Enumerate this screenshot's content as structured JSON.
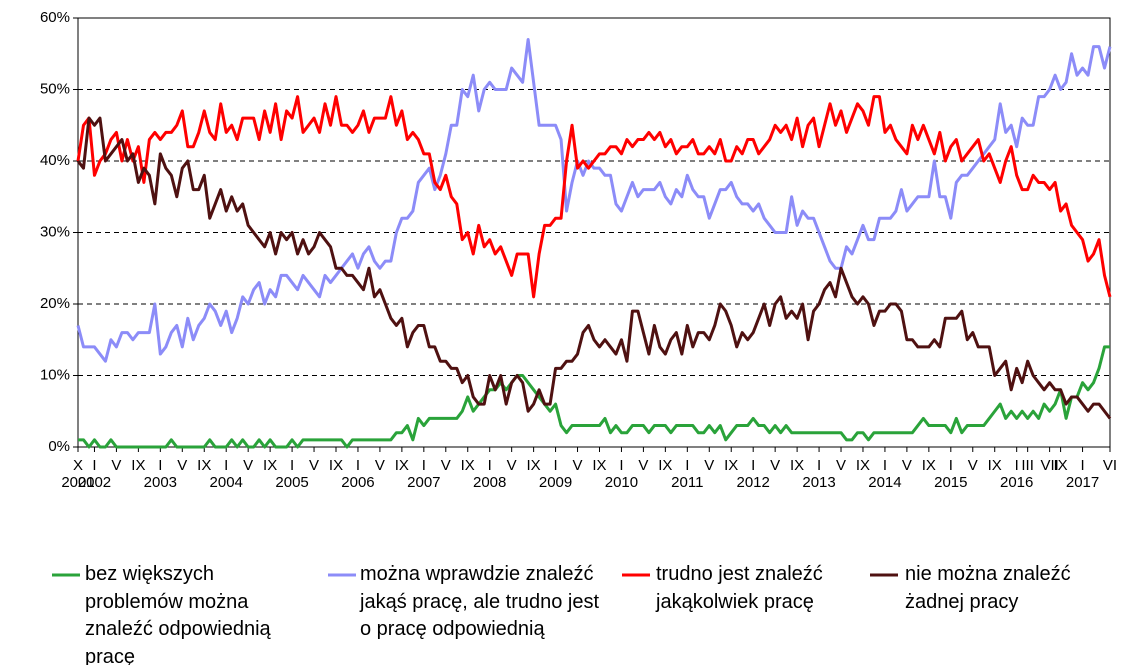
{
  "chart_data": {
    "type": "line",
    "categories": [
      "X",
      null,
      null,
      "I",
      null,
      null,
      null,
      "V",
      null,
      null,
      null,
      "IX",
      null,
      null,
      null,
      "I",
      null,
      null,
      null,
      "V",
      null,
      null,
      null,
      "IX",
      null,
      null,
      null,
      "I",
      null,
      null,
      null,
      "V",
      null,
      null,
      null,
      "IX",
      null,
      null,
      null,
      "I",
      null,
      null,
      null,
      "V",
      null,
      null,
      null,
      "IX",
      null,
      null,
      null,
      "I",
      null,
      null,
      null,
      "V",
      null,
      null,
      null,
      "IX",
      null,
      null,
      null,
      "I",
      null,
      null,
      null,
      "V",
      null,
      null,
      null,
      "IX",
      null,
      null,
      null,
      "I",
      null,
      null,
      null,
      "V",
      null,
      null,
      null,
      "IX",
      null,
      null,
      null,
      "I",
      null,
      null,
      null,
      "V",
      null,
      null,
      null,
      "IX",
      null,
      null,
      null,
      "I",
      null,
      null,
      null,
      "V",
      null,
      null,
      null,
      "IX",
      null,
      null,
      null,
      "I",
      null,
      null,
      null,
      "V",
      null,
      null,
      null,
      "IX",
      null,
      null,
      null,
      "I",
      null,
      null,
      null,
      "V",
      null,
      null,
      null,
      "IX",
      null,
      null,
      null,
      "I",
      null,
      null,
      null,
      "V",
      null,
      null,
      null,
      "IX",
      null,
      null,
      null,
      "I",
      null,
      null,
      null,
      "V",
      null,
      null,
      null,
      "IX",
      null,
      null,
      null,
      "I",
      null,
      null,
      null,
      "V",
      null,
      null,
      null,
      "IX",
      null,
      null,
      null,
      "I",
      null,
      "III",
      null,
      null,
      null,
      "VII",
      null,
      "IX",
      null,
      null,
      null,
      "I",
      null,
      null,
      null,
      null,
      "VI"
    ],
    "years": [
      "2001",
      null,
      null,
      "2002",
      null,
      null,
      null,
      null,
      null,
      null,
      null,
      null,
      null,
      null,
      null,
      "2003",
      null,
      null,
      null,
      null,
      null,
      null,
      null,
      null,
      null,
      null,
      null,
      "2004",
      null,
      null,
      null,
      null,
      null,
      null,
      null,
      null,
      null,
      null,
      null,
      "2005",
      null,
      null,
      null,
      null,
      null,
      null,
      null,
      null,
      null,
      null,
      null,
      "2006",
      null,
      null,
      null,
      null,
      null,
      null,
      null,
      null,
      null,
      null,
      null,
      "2007",
      null,
      null,
      null,
      null,
      null,
      null,
      null,
      null,
      null,
      null,
      null,
      "2008",
      null,
      null,
      null,
      null,
      null,
      null,
      null,
      null,
      null,
      null,
      null,
      "2009",
      null,
      null,
      null,
      null,
      null,
      null,
      null,
      null,
      null,
      null,
      null,
      "2010",
      null,
      null,
      null,
      null,
      null,
      null,
      null,
      null,
      null,
      null,
      null,
      "2011",
      null,
      null,
      null,
      null,
      null,
      null,
      null,
      null,
      null,
      null,
      null,
      "2012",
      null,
      null,
      null,
      null,
      null,
      null,
      null,
      null,
      null,
      null,
      null,
      "2013",
      null,
      null,
      null,
      null,
      null,
      null,
      null,
      null,
      null,
      null,
      null,
      "2014",
      null,
      null,
      null,
      null,
      null,
      null,
      null,
      null,
      null,
      null,
      null,
      "2015",
      null,
      null,
      null,
      null,
      null,
      null,
      null,
      null,
      null,
      null,
      null,
      "2016",
      null,
      null,
      null,
      null,
      null,
      null,
      null,
      null,
      null,
      null,
      null,
      "2017",
      null,
      null,
      null,
      null,
      null
    ],
    "series": [
      {
        "name": "bez większych problemów można znaleźć odpowiednią pracę",
        "color": "#2aa33a",
        "values": [
          1,
          1,
          0,
          1,
          0,
          0,
          1,
          0,
          0,
          0,
          0,
          0,
          0,
          0,
          0,
          0,
          0,
          1,
          0,
          0,
          0,
          0,
          0,
          0,
          1,
          0,
          0,
          0,
          1,
          0,
          1,
          0,
          0,
          1,
          0,
          1,
          0,
          0,
          0,
          1,
          0,
          1,
          1,
          1,
          1,
          1,
          1,
          1,
          1,
          0,
          1,
          1,
          1,
          1,
          1,
          1,
          1,
          1,
          2,
          2,
          3,
          1,
          4,
          3,
          4,
          4,
          4,
          4,
          4,
          4,
          5,
          7,
          5,
          6,
          7,
          8,
          8,
          9,
          8,
          9,
          10,
          10,
          9,
          8,
          7,
          6,
          5,
          6,
          3,
          2,
          3,
          3,
          3,
          3,
          3,
          3,
          4,
          2,
          3,
          2,
          2,
          3,
          3,
          3,
          2,
          3,
          3,
          3,
          2,
          3,
          3,
          3,
          3,
          2,
          2,
          3,
          2,
          3,
          1,
          2,
          3,
          3,
          3,
          4,
          3,
          3,
          2,
          3,
          2,
          3,
          2,
          2,
          2,
          2,
          2,
          2,
          2,
          2,
          2,
          2,
          1,
          1,
          2,
          2,
          1,
          2,
          2,
          2,
          2,
          2,
          2,
          2,
          2,
          3,
          4,
          3,
          3,
          3,
          3,
          2,
          4,
          2,
          3,
          3,
          3,
          3,
          4,
          5,
          6,
          4,
          5,
          4,
          5,
          4,
          5,
          4,
          6,
          5,
          6,
          8,
          4,
          7,
          7,
          9,
          8,
          9,
          11,
          14,
          14
        ]
      },
      {
        "name": "można wprawdzie znaleźć jakąś pracę, ale trudno jest o pracę odpowiednią",
        "color": "#8c8cf8",
        "values": [
          17,
          14,
          14,
          14,
          13,
          12,
          15,
          14,
          16,
          16,
          15,
          16,
          16,
          16,
          20,
          13,
          14,
          16,
          17,
          14,
          18,
          15,
          17,
          18,
          20,
          19,
          17,
          19,
          16,
          18,
          21,
          20,
          22,
          23,
          20,
          22,
          21,
          24,
          24,
          23,
          22,
          24,
          23,
          22,
          21,
          24,
          23,
          24,
          25,
          26,
          27,
          25,
          27,
          28,
          26,
          25,
          26,
          26,
          30,
          32,
          32,
          33,
          37,
          38,
          39,
          36,
          38,
          41,
          45,
          45,
          50,
          49,
          52,
          47,
          50,
          51,
          50,
          50,
          50,
          53,
          52,
          51,
          57,
          51,
          45,
          45,
          45,
          45,
          43,
          33,
          37,
          40,
          38,
          40,
          39,
          39,
          38,
          38,
          34,
          33,
          35,
          37,
          35,
          36,
          36,
          36,
          37,
          35,
          34,
          36,
          35,
          38,
          36,
          35,
          35,
          32,
          34,
          36,
          36,
          37,
          35,
          34,
          34,
          33,
          34,
          32,
          31,
          30,
          30,
          30,
          35,
          31,
          33,
          32,
          32,
          30,
          28,
          26,
          25,
          25,
          28,
          27,
          29,
          31,
          29,
          29,
          32,
          32,
          32,
          33,
          36,
          33,
          34,
          35,
          35,
          35,
          40,
          35,
          35,
          32,
          37,
          38,
          38,
          39,
          40,
          41,
          42,
          43,
          48,
          44,
          45,
          42,
          46,
          45,
          45,
          49,
          49,
          50,
          52,
          50,
          51,
          55,
          52,
          53,
          52,
          56,
          56,
          53,
          56
        ]
      },
      {
        "name": "trudno jest znaleźć jakąkolwiek pracę",
        "color": "#ff0000",
        "values": [
          40,
          45,
          46,
          38,
          40,
          41,
          43,
          44,
          40,
          43,
          40,
          42,
          37,
          43,
          44,
          43,
          44,
          44,
          45,
          47,
          42,
          42,
          44,
          47,
          44,
          43,
          48,
          44,
          45,
          43,
          46,
          46,
          46,
          43,
          47,
          44,
          48,
          43,
          47,
          46,
          49,
          44,
          45,
          46,
          44,
          48,
          45,
          49,
          45,
          45,
          44,
          45,
          47,
          44,
          46,
          46,
          46,
          49,
          45,
          47,
          43,
          44,
          43,
          41,
          41,
          37,
          36,
          38,
          35,
          34,
          29,
          30,
          27,
          31,
          28,
          29,
          27,
          28,
          26,
          24,
          27,
          27,
          27,
          21,
          27,
          31,
          31,
          32,
          32,
          40,
          45,
          39,
          40,
          39,
          40,
          41,
          41,
          42,
          42,
          41,
          43,
          42,
          43,
          43,
          44,
          43,
          44,
          42,
          43,
          41,
          42,
          42,
          43,
          41,
          41,
          42,
          41,
          43,
          40,
          40,
          42,
          41,
          43,
          43,
          41,
          42,
          43,
          45,
          44,
          45,
          43,
          46,
          42,
          45,
          46,
          42,
          45,
          48,
          45,
          47,
          44,
          46,
          48,
          47,
          45,
          49,
          49,
          44,
          45,
          43,
          42,
          41,
          45,
          43,
          45,
          43,
          41,
          44,
          40,
          42,
          43,
          40,
          41,
          42,
          43,
          40,
          41,
          39,
          37,
          40,
          42,
          38,
          36,
          36,
          38,
          37,
          37,
          36,
          37,
          33,
          34,
          31,
          30,
          29,
          26,
          27,
          29,
          24,
          21
        ]
      },
      {
        "name": "nie można znaleźć żadnej pracy",
        "color": "#4f1111",
        "values": [
          40,
          39,
          46,
          45,
          46,
          40,
          41,
          42,
          43,
          40,
          41,
          37,
          39,
          38,
          34,
          41,
          39,
          38,
          35,
          39,
          40,
          36,
          36,
          38,
          32,
          34,
          36,
          33,
          35,
          33,
          34,
          31,
          30,
          29,
          28,
          30,
          27,
          30,
          29,
          30,
          27,
          29,
          27,
          28,
          30,
          29,
          28,
          25,
          25,
          24,
          24,
          23,
          22,
          25,
          21,
          22,
          20,
          18,
          17,
          18,
          14,
          16,
          17,
          17,
          14,
          14,
          12,
          12,
          11,
          11,
          9,
          10,
          7,
          6,
          6,
          10,
          8,
          10,
          6,
          9,
          10,
          9,
          5,
          6,
          8,
          6,
          6,
          11,
          11,
          12,
          12,
          13,
          16,
          17,
          15,
          14,
          15,
          14,
          13,
          15,
          12,
          19,
          19,
          16,
          13,
          17,
          14,
          13,
          15,
          16,
          13,
          17,
          14,
          16,
          16,
          15,
          17,
          20,
          19,
          17,
          14,
          16,
          15,
          16,
          18,
          20,
          17,
          20,
          21,
          18,
          19,
          18,
          20,
          15,
          19,
          20,
          22,
          23,
          21,
          25,
          23,
          21,
          20,
          21,
          20,
          17,
          19,
          19,
          20,
          20,
          19,
          15,
          15,
          14,
          14,
          14,
          15,
          14,
          18,
          18,
          18,
          19,
          15,
          16,
          14,
          14,
          14,
          10,
          11,
          12,
          8,
          11,
          9,
          12,
          10,
          9,
          8,
          9,
          8,
          8,
          6,
          7,
          7,
          6,
          5,
          6,
          6,
          5,
          4
        ]
      }
    ],
    "ylim": [
      0,
      60
    ],
    "yticks": [
      {
        "value": 0,
        "label": "0%"
      },
      {
        "value": 10,
        "label": "10%"
      },
      {
        "value": 20,
        "label": "20%"
      },
      {
        "value": 30,
        "label": "30%"
      },
      {
        "value": 40,
        "label": "40%"
      },
      {
        "value": 50,
        "label": "50%"
      },
      {
        "value": 60,
        "label": "60%"
      }
    ],
    "grid": true,
    "legend": "bottom"
  }
}
